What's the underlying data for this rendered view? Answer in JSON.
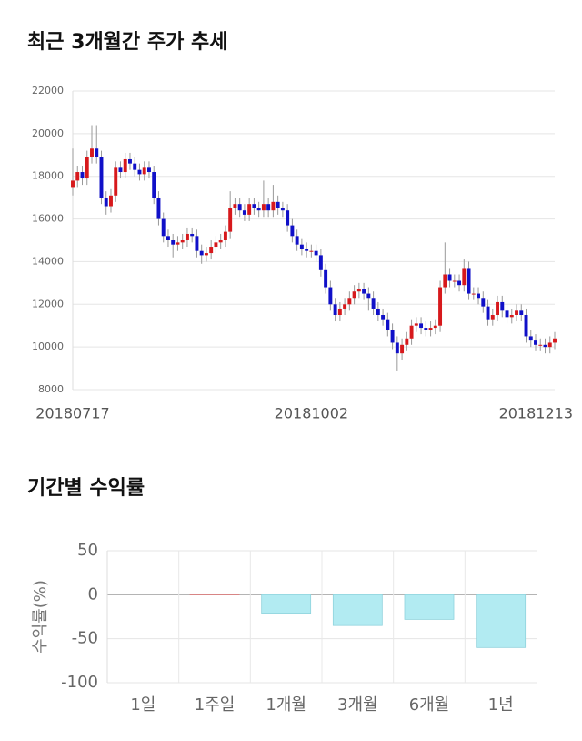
{
  "chart_data": [
    {
      "type": "candlestick",
      "title": "최근 3개월간 주가 추세",
      "categories": [
        "20180717",
        null,
        null,
        null,
        null,
        null,
        null,
        null,
        null,
        null,
        null,
        null,
        null,
        null,
        null,
        null,
        null,
        null,
        null,
        null,
        null,
        null,
        null,
        null,
        null,
        null,
        null,
        null,
        null,
        null,
        null,
        null,
        null,
        null,
        null,
        null,
        null,
        null,
        null,
        null,
        null,
        null,
        null,
        null,
        null,
        null,
        null,
        null,
        null,
        null,
        "20181002",
        null,
        null,
        null,
        null,
        null,
        null,
        null,
        null,
        null,
        null,
        null,
        null,
        null,
        null,
        null,
        null,
        null,
        null,
        null,
        null,
        null,
        null,
        null,
        null,
        null,
        null,
        null,
        null,
        null,
        null,
        null,
        null,
        null,
        null,
        null,
        null,
        null,
        null,
        null,
        null,
        null,
        null,
        null,
        null,
        null,
        null,
        null,
        null,
        null,
        null,
        "20181213"
      ],
      "open": [
        17500,
        17800,
        18200,
        17900,
        18900,
        19300,
        18900,
        17000,
        16600,
        17100,
        18400,
        18200,
        18800,
        18600,
        18300,
        18100,
        18400,
        18200,
        17000,
        16000,
        15200,
        15000,
        14800,
        14900,
        15000,
        15300,
        15200,
        14500,
        14300,
        14400,
        14700,
        14900,
        15000,
        15400,
        16500,
        16700,
        16400,
        16200,
        16700,
        16500,
        16400,
        16700,
        16400,
        16800,
        16500,
        16400,
        15700,
        15200,
        14800,
        14600,
        14500,
        14500,
        14300,
        13600,
        12800,
        12000,
        11500,
        11800,
        12000,
        12300,
        12600,
        12700,
        12500,
        12300,
        11800,
        11500,
        11300,
        10800,
        10200,
        9700,
        10100,
        10400,
        11000,
        11100,
        10900,
        10800,
        10900,
        11000,
        12800,
        13400,
        13100,
        13100,
        12900,
        13700,
        12500,
        12500,
        12300,
        11900,
        11300,
        11500,
        12100,
        11700,
        11400,
        11500,
        11700,
        11500,
        10500,
        10300,
        10100,
        10100,
        10000,
        10200
      ],
      "high": [
        19300,
        18500,
        18500,
        19200,
        20400,
        20400,
        19200,
        17300,
        17400,
        18700,
        18700,
        19100,
        19100,
        18900,
        18600,
        18700,
        18700,
        18500,
        17300,
        16300,
        15500,
        15300,
        15200,
        15300,
        15600,
        15600,
        15500,
        14800,
        14700,
        15000,
        15200,
        15300,
        15700,
        17300,
        17000,
        17000,
        16700,
        17000,
        17000,
        16800,
        17800,
        17000,
        17600,
        17100,
        16800,
        16700,
        16000,
        15500,
        15100,
        14900,
        14800,
        14800,
        14600,
        13900,
        13100,
        12300,
        12100,
        12300,
        12600,
        12900,
        13000,
        13000,
        12800,
        12600,
        12100,
        11800,
        11600,
        11100,
        10500,
        10400,
        10700,
        11300,
        11400,
        11400,
        11200,
        11200,
        11300,
        13100,
        14900,
        13700,
        13400,
        13400,
        14100,
        14000,
        12800,
        12800,
        12600,
        12200,
        11800,
        12400,
        12400,
        12000,
        11800,
        12000,
        12000,
        11800,
        10800,
        10600,
        10400,
        10400,
        10500,
        10700
      ],
      "low": [
        17100,
        17500,
        17600,
        17600,
        18600,
        18600,
        16700,
        16200,
        16300,
        16800,
        17900,
        17900,
        18300,
        18000,
        17800,
        17800,
        17900,
        16700,
        15700,
        14900,
        14700,
        14200,
        14500,
        14600,
        14700,
        14900,
        14200,
        13900,
        14000,
        14100,
        14400,
        14600,
        14700,
        15100,
        16200,
        16100,
        15900,
        15900,
        16200,
        16100,
        16100,
        16100,
        16100,
        16200,
        16100,
        15400,
        14900,
        14500,
        14300,
        14200,
        14200,
        14000,
        13300,
        12500,
        11700,
        11200,
        11200,
        11500,
        11700,
        12000,
        12300,
        12200,
        11700,
        11500,
        11200,
        11000,
        10500,
        9900,
        8900,
        9400,
        9800,
        10100,
        10700,
        10600,
        10500,
        10500,
        10600,
        10700,
        12500,
        12800,
        12800,
        12600,
        12600,
        12200,
        12200,
        12000,
        11600,
        11000,
        11000,
        11200,
        11400,
        11100,
        11100,
        11200,
        11200,
        10200,
        10000,
        9800,
        9800,
        9700,
        9700,
        9900
      ],
      "close": [
        17800,
        18200,
        17900,
        18900,
        19300,
        18900,
        17000,
        16600,
        17100,
        18400,
        18200,
        18800,
        18600,
        18300,
        18100,
        18400,
        18200,
        17000,
        16000,
        15200,
        15000,
        14800,
        14900,
        15000,
        15300,
        15200,
        14500,
        14300,
        14400,
        14700,
        14900,
        15000,
        15400,
        16500,
        16700,
        16400,
        16200,
        16700,
        16500,
        16400,
        16700,
        16400,
        16800,
        16500,
        16400,
        15700,
        15200,
        14800,
        14600,
        14500,
        14500,
        14300,
        13600,
        12800,
        12000,
        11500,
        11800,
        12000,
        12300,
        12600,
        12700,
        12500,
        12300,
        11800,
        11500,
        11300,
        10800,
        10200,
        9700,
        10100,
        10400,
        11000,
        11100,
        10900,
        10800,
        10900,
        11000,
        12800,
        13400,
        13100,
        13100,
        12900,
        13700,
        12500,
        12500,
        12300,
        11900,
        11300,
        11500,
        12100,
        11700,
        11400,
        11500,
        11700,
        11500,
        10500,
        10300,
        10100,
        10100,
        10000,
        10200,
        10400
      ],
      "up_color": "#d7191c",
      "down_color": "#1010c8",
      "ylim": [
        8000,
        22000
      ],
      "yticks": [
        8000,
        10000,
        12000,
        14000,
        16000,
        18000,
        20000,
        22000
      ],
      "grid": true
    },
    {
      "type": "bar",
      "title": "기간별 수익률",
      "y_label": "수익률(%)",
      "categories": [
        "1일",
        "1주일",
        "1개월",
        "3개월",
        "6개월",
        "1년"
      ],
      "values": [
        0,
        0.3,
        -21,
        -35,
        -28,
        -60
      ],
      "positive_color": "#f4a0a0",
      "negative_color": "#b2ebf2",
      "ylim": [
        -100,
        50
      ],
      "yticks": [
        -100,
        -50,
        0,
        50
      ],
      "grid": true
    }
  ]
}
